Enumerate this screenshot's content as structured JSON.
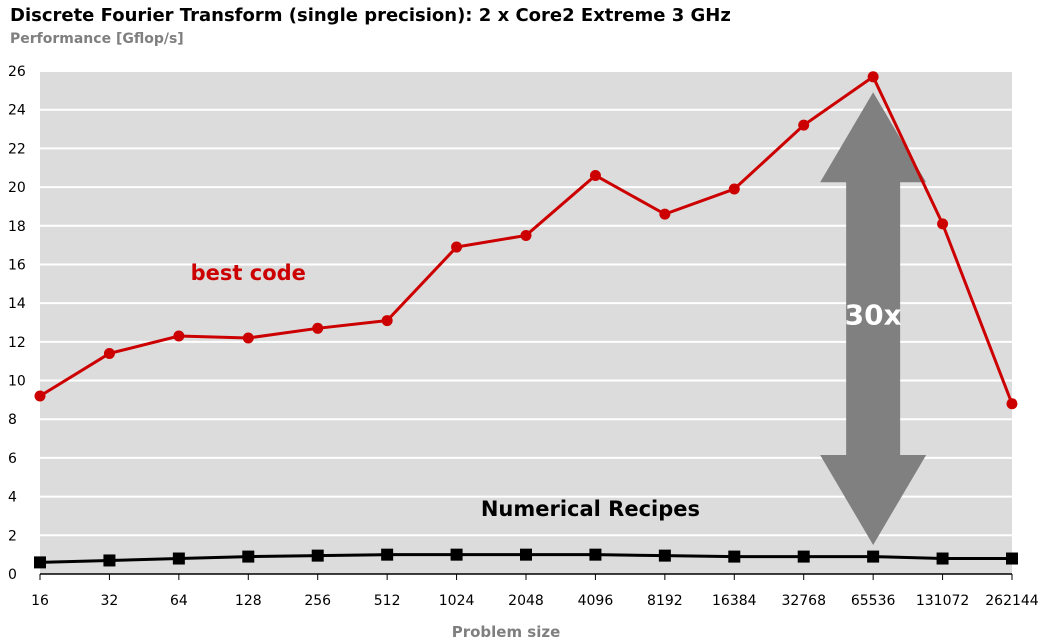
{
  "chart_data": {
    "type": "line",
    "title": "Discrete Fourier Transform (single precision): 2 x Core2 Extreme 3 GHz",
    "subtitle": "Performance [Gflop/s]",
    "xlabel": "Problem size",
    "ylabel": "",
    "ylim": [
      0,
      26
    ],
    "yticks": [
      0,
      2,
      4,
      6,
      8,
      10,
      12,
      14,
      16,
      18,
      20,
      22,
      24,
      26
    ],
    "grid": true,
    "legend": "none",
    "categories": [
      "16",
      "32",
      "64",
      "128",
      "256",
      "512",
      "1024",
      "2048",
      "4096",
      "8192",
      "16384",
      "32768",
      "65536",
      "131072",
      "262144"
    ],
    "series": [
      {
        "name": "best code",
        "color": "#cc0000",
        "marker": "circle",
        "values": [
          9.2,
          11.4,
          12.3,
          12.2,
          12.7,
          13.1,
          16.9,
          17.5,
          20.6,
          18.6,
          19.9,
          23.2,
          25.7,
          18.1,
          8.8
        ]
      },
      {
        "name": "Numerical Recipes",
        "color": "#000000",
        "marker": "square",
        "values": [
          0.6,
          0.7,
          0.8,
          0.9,
          0.95,
          1.0,
          1.0,
          1.0,
          1.0,
          0.95,
          0.9,
          0.9,
          0.9,
          0.8,
          0.8
        ]
      }
    ],
    "annotations": {
      "ratio_label": "30x",
      "arrow_color": "#808080",
      "arrow_from": 1.5,
      "arrow_to": 24.9,
      "arrow_category": "65536"
    },
    "plot_background": "#dcdcdc"
  }
}
